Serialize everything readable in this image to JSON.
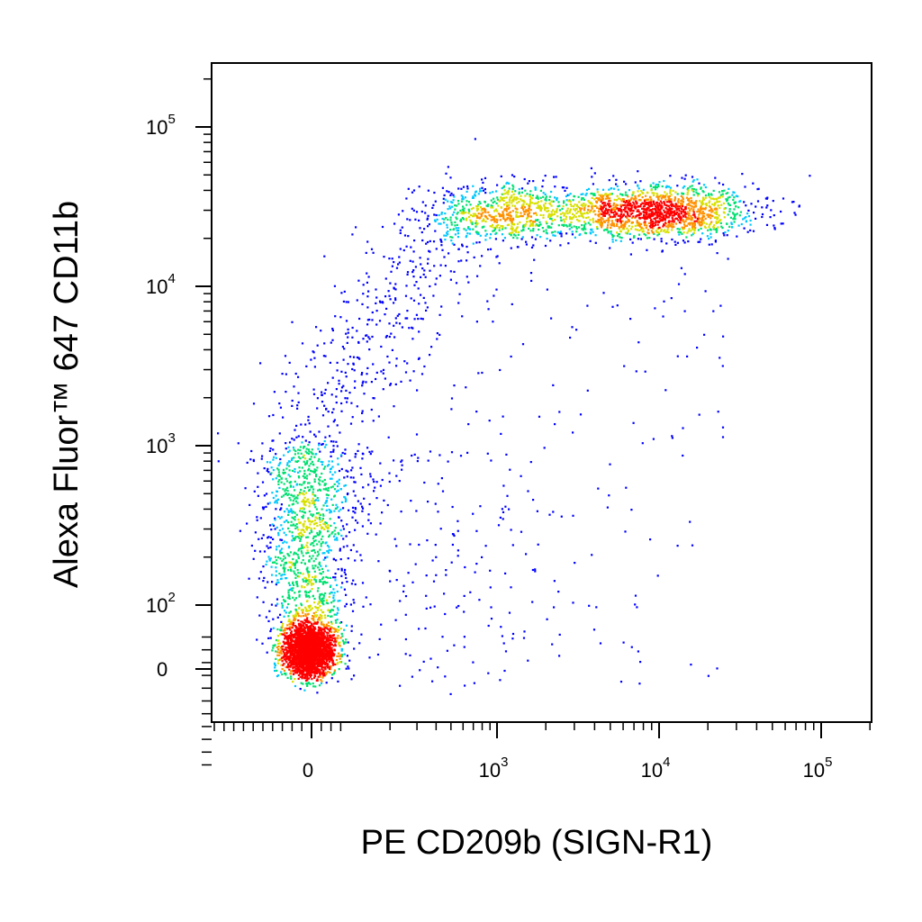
{
  "chart_data": {
    "type": "scatter",
    "subtype": "flow-cytometry-density-dot-plot",
    "xlabel": "PE CD209b (SIGN-R1)",
    "ylabel": "Alexa Fluor™ 647  CD11b",
    "x_scale": "biexponential",
    "y_scale": "biexponential",
    "xlim": [
      -500,
      250000
    ],
    "ylim": [
      -300,
      250000
    ],
    "x_ticks": [
      {
        "value": 0,
        "base": "0",
        "exp": ""
      },
      {
        "value": 1000,
        "base": "10",
        "exp": "3"
      },
      {
        "value": 10000,
        "base": "10",
        "exp": "4"
      },
      {
        "value": 100000,
        "base": "10",
        "exp": "5"
      }
    ],
    "y_ticks": [
      {
        "value": 0,
        "base": "0",
        "exp": ""
      },
      {
        "value": 100,
        "base": "10",
        "exp": "2"
      },
      {
        "value": 1000,
        "base": "10",
        "exp": "3"
      },
      {
        "value": 10000,
        "base": "10",
        "exp": "4"
      },
      {
        "value": 100000,
        "base": "10",
        "exp": "5"
      }
    ],
    "grid": false,
    "legend": "none",
    "color_map": [
      "#0000ff",
      "#00c8ff",
      "#00e070",
      "#d8e000",
      "#ff9000",
      "#ff0000"
    ],
    "populations": [
      {
        "name_shown": false,
        "center_x": 0,
        "center_y": 30,
        "count": 2200
      },
      {
        "name_shown": false,
        "center_x": 0,
        "center_y": 300,
        "count": 1500
      },
      {
        "name_shown": false,
        "center_x": 0,
        "center_y": 5000,
        "count": 400
      },
      {
        "name_shown": false,
        "center_x": 8000,
        "center_y": 30000,
        "count": 1500
      },
      {
        "name_shown": false,
        "center_x": 1500,
        "center_y": 30000,
        "count": 700
      }
    ]
  }
}
